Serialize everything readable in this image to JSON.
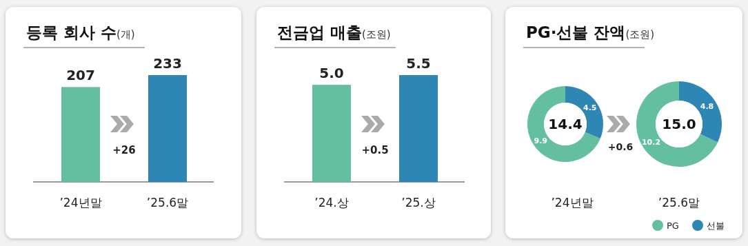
{
  "chart_data": [
    {
      "type": "bar",
      "title": "등록 회사 수(개)",
      "categories": [
        "’24년말",
        "’25.6말"
      ],
      "values": [
        207,
        233
      ],
      "colors": [
        "#63bfa0",
        "#2e86b5"
      ],
      "data_labels": true,
      "annotations": [
        "+26"
      ]
    },
    {
      "type": "bar",
      "title": "전금업 매출(조원)",
      "categories": [
        "’24.상",
        "’25.상"
      ],
      "values": [
        5.0,
        5.5
      ],
      "colors": [
        "#63bfa0",
        "#2e86b5"
      ],
      "value_labels": [
        "5.0",
        "5.5"
      ],
      "data_labels": true,
      "annotations": [
        "+0.5"
      ]
    },
    {
      "type": "donut",
      "title": "PG·선불 잔액(조원)",
      "categories": [
        "PG",
        "선불"
      ],
      "colors": [
        "#63bfa0",
        "#2e86b5"
      ],
      "data_labels": true,
      "legend": "bottom right",
      "annotations": [
        "14.4",
        "+0.6",
        "15.0"
      ],
      "series": [
        {
          "name": "’24년말",
          "values": [
            9.9,
            4.5
          ]
        },
        {
          "name": "’25.6말",
          "values": [
            10.2,
            4.8
          ]
        }
      ]
    }
  ]
}
